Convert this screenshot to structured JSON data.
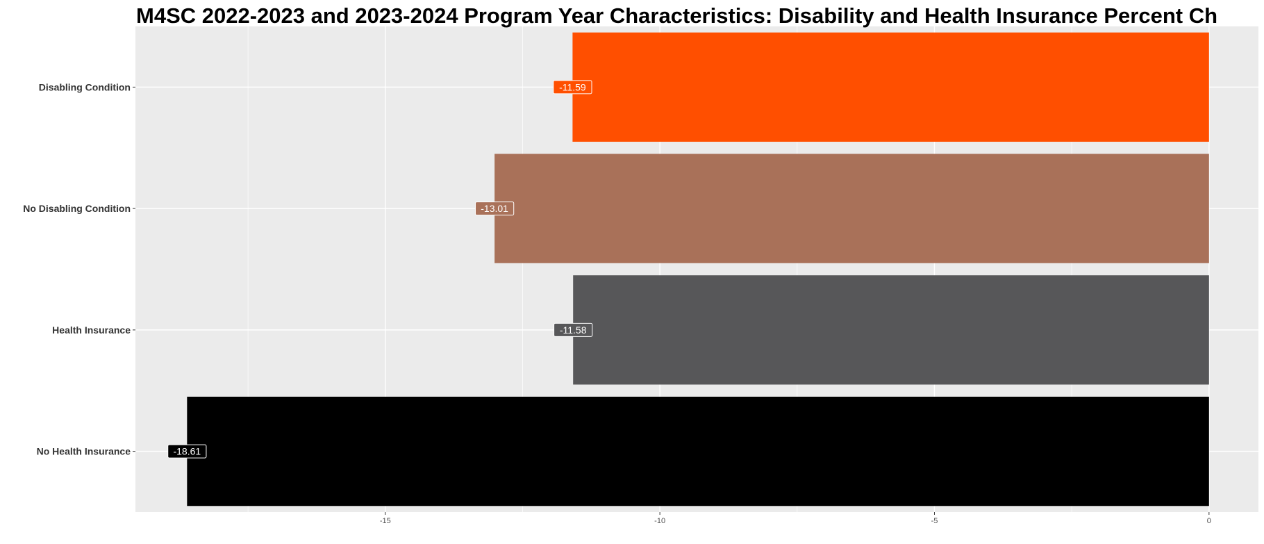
{
  "chart_data": {
    "type": "bar",
    "orientation": "horizontal",
    "title": "M4SC 2022-2023 and 2023-2024 Program Year Characteristics: Disability and Health Insurance Percent Ch",
    "xlabel": "",
    "ylabel": "",
    "categories": [
      "Disabling Condition",
      "No Disabling Condition",
      "Health Insurance",
      "No Health Insurance"
    ],
    "values": [
      -11.59,
      -13.01,
      -11.58,
      -18.61
    ],
    "data_labels": [
      "-11.59",
      "-13.01",
      "-11.58",
      "-18.61"
    ],
    "colors": [
      "#ff4f00",
      "#a97159",
      "#575759",
      "#000000"
    ],
    "xlim": [
      -19.55,
      0.9
    ],
    "x_ticks": [
      -15,
      -10,
      -5,
      0
    ],
    "x_tick_labels": [
      "-15",
      "-10",
      "-5",
      "0"
    ],
    "panel_background": "#ebebeb",
    "grid": true,
    "legend": "none"
  }
}
